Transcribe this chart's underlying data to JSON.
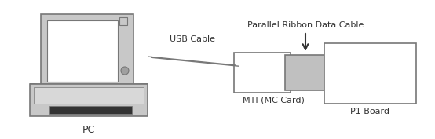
{
  "background_color": "#ffffff",
  "figsize": [
    5.54,
    1.77
  ],
  "dpi": 100,
  "pc_label": "PC",
  "usb_label": "USB Cable",
  "mti_label": "MTI (MC Card)",
  "p1_label": "P1 Board",
  "ribbon_label": "Parallel Ribbon Data Cable",
  "colors": {
    "outline": "#777777",
    "gray_fill": "#c0c0c0",
    "white_fill": "#ffffff",
    "light_gray": "#d8d8d8",
    "mid_gray": "#b0b0b0",
    "dark_gray": "#888888",
    "black": "#333333",
    "pc_screen_bg": "#f0f0f0",
    "pc_body": "#c8c8c8",
    "pc_darker": "#a0a0a0",
    "pc_darkest": "#333333"
  }
}
